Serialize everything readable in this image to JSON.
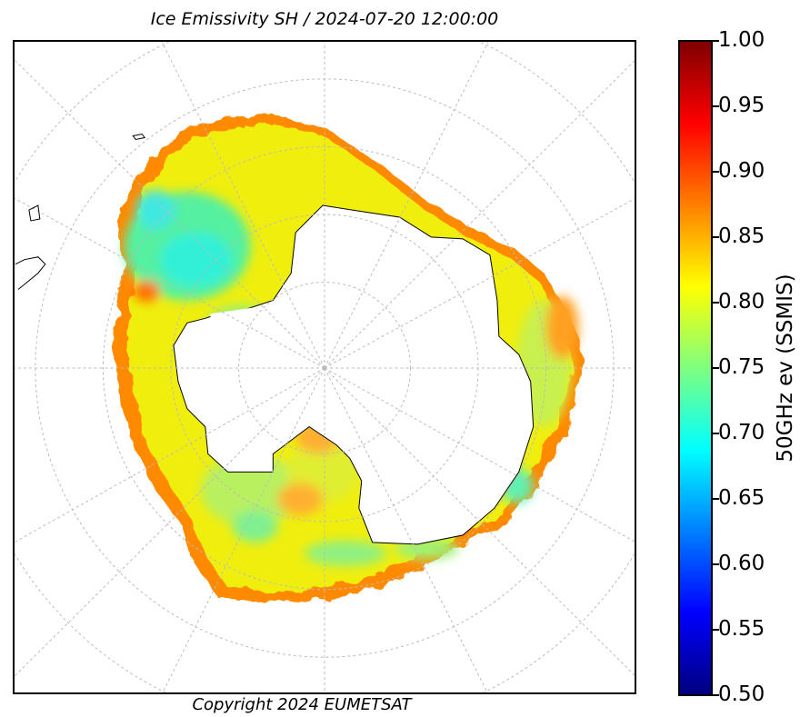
{
  "title": "Ice Emissivity SH / 2024-07-20 12:00:00",
  "copyright": "Copyright 2024 EUMETSAT",
  "map": {
    "projection": "south-polar-stereographic",
    "region": "Antarctica / Southern Hemisphere sea ice",
    "graticule": "dashed-grey"
  },
  "colorbar": {
    "label": "50GHz ev (SSMIS)",
    "colormap": "jet",
    "min": 0.5,
    "max": 1.0,
    "ticks": [
      "0.50",
      "0.55",
      "0.60",
      "0.65",
      "0.70",
      "0.75",
      "0.80",
      "0.85",
      "0.90",
      "0.95",
      "1.00"
    ]
  }
}
